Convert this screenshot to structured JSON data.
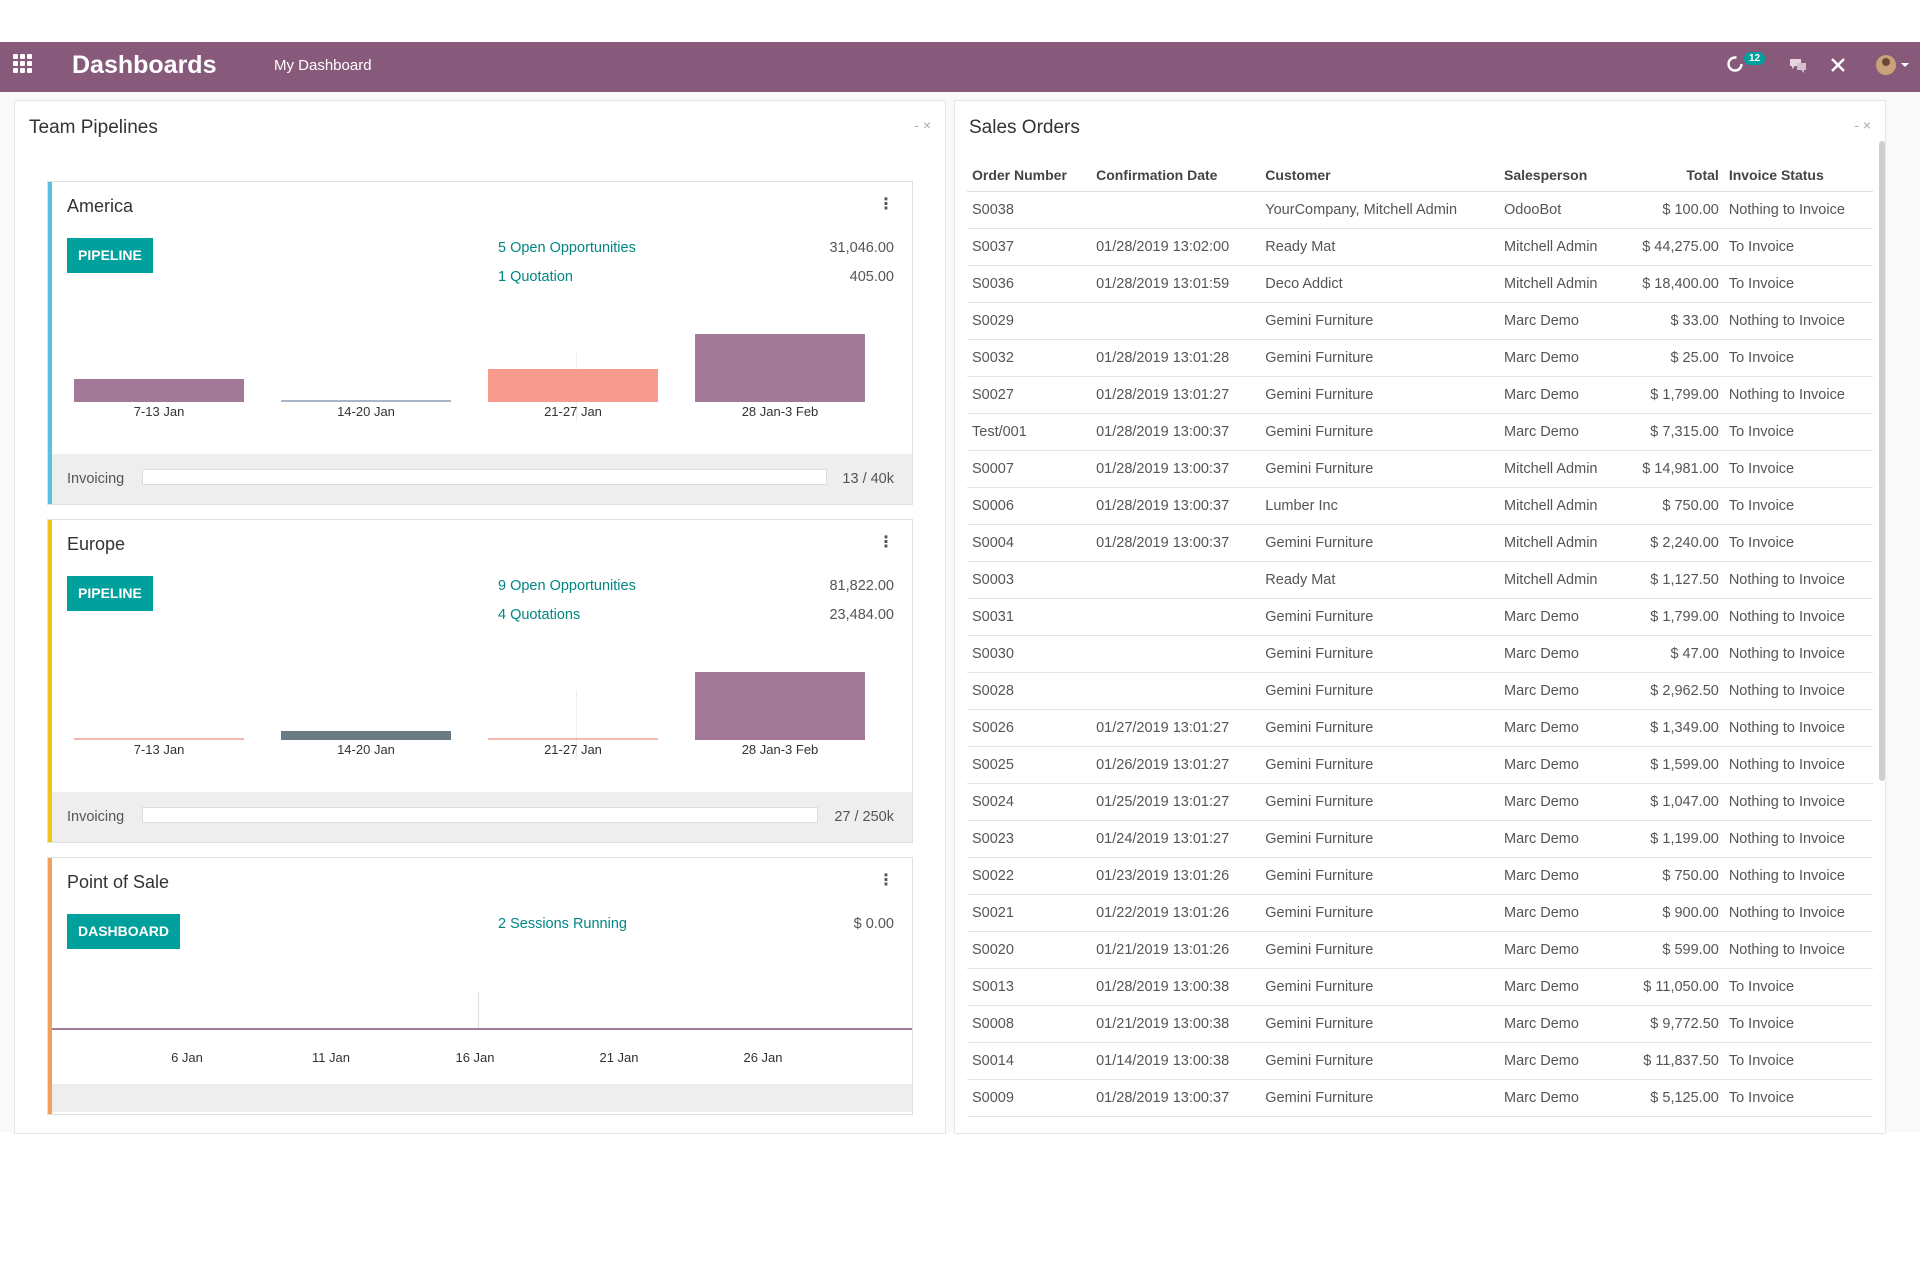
{
  "topbar": {
    "app_title": "Dashboards",
    "menu_item": "My Dashboard",
    "activity_count": "12",
    "bg_color": "#875a7b"
  },
  "left_panel": {
    "title": "Team Pipelines",
    "controls": "- ×",
    "teams": [
      {
        "name": "America",
        "accent": "#5bc0de",
        "button": "PIPELINE",
        "lines": [
          {
            "label": "5 Open Opportunities",
            "amount": "31,046.00"
          },
          {
            "label": "1 Quotation",
            "amount": "405.00"
          }
        ],
        "bars": [
          {
            "label": "7-13 Jan",
            "value": 20,
            "color": "#a27a97"
          },
          {
            "label": "14-20 Jan",
            "value": 2,
            "color": "#a7b6c4"
          },
          {
            "label": "21-27 Jan",
            "value": 28,
            "color": "#f89a8e"
          },
          {
            "label": "28 Jan-3 Feb",
            "value": 58,
            "color": "#a27a97"
          }
        ],
        "invoicing_label": "Invoicing",
        "invoicing_value": "13 / 40k",
        "invoicing_fraction": 0.0003
      },
      {
        "name": "Europe",
        "accent": "#f0c419",
        "button": "PIPELINE",
        "lines": [
          {
            "label": "9 Open Opportunities",
            "amount": "81,822.00"
          },
          {
            "label": "4 Quotations",
            "amount": "23,484.00"
          }
        ],
        "bars": [
          {
            "label": "7-13 Jan",
            "value": 2,
            "color": "#f4b8b1"
          },
          {
            "label": "14-20 Jan",
            "value": 8,
            "color": "#6c7a84"
          },
          {
            "label": "21-27 Jan",
            "value": 2,
            "color": "#f4b8b1"
          },
          {
            "label": "28 Jan-3 Feb",
            "value": 58,
            "color": "#a27a97"
          }
        ],
        "invoicing_label": "Invoicing",
        "invoicing_value": "27 / 250k",
        "invoicing_fraction": 0.0001
      },
      {
        "name": "Point of Sale",
        "accent": "#f0a05a",
        "button": "DASHBOARD",
        "lines": [
          {
            "label": "2 Sessions Running",
            "amount": "$ 0.00"
          }
        ],
        "ticks": [
          "6 Jan",
          "11 Jan",
          "16 Jan",
          "21 Jan",
          "26 Jan"
        ]
      }
    ]
  },
  "right_panel": {
    "title": "Sales Orders",
    "controls": "- ×",
    "columns": [
      "Order Number",
      "Confirmation Date",
      "Customer",
      "Salesperson",
      "Total",
      "Invoice Status"
    ],
    "rows": [
      [
        "S0038",
        "",
        "YourCompany, Mitchell Admin",
        "OdooBot",
        "$ 100.00",
        "Nothing to Invoice"
      ],
      [
        "S0037",
        "01/28/2019 13:02:00",
        "Ready Mat",
        "Mitchell Admin",
        "$ 44,275.00",
        "To Invoice"
      ],
      [
        "S0036",
        "01/28/2019 13:01:59",
        "Deco Addict",
        "Mitchell Admin",
        "$ 18,400.00",
        "To Invoice"
      ],
      [
        "S0029",
        "",
        "Gemini Furniture",
        "Marc Demo",
        "$ 33.00",
        "Nothing to Invoice"
      ],
      [
        "S0032",
        "01/28/2019 13:01:28",
        "Gemini Furniture",
        "Marc Demo",
        "$ 25.00",
        "To Invoice"
      ],
      [
        "S0027",
        "01/28/2019 13:01:27",
        "Gemini Furniture",
        "Marc Demo",
        "$ 1,799.00",
        "Nothing to Invoice"
      ],
      [
        "Test/001",
        "01/28/2019 13:00:37",
        "Gemini Furniture",
        "Marc Demo",
        "$ 7,315.00",
        "To Invoice"
      ],
      [
        "S0007",
        "01/28/2019 13:00:37",
        "Gemini Furniture",
        "Mitchell Admin",
        "$ 14,981.00",
        "To Invoice"
      ],
      [
        "S0006",
        "01/28/2019 13:00:37",
        "Lumber Inc",
        "Mitchell Admin",
        "$ 750.00",
        "To Invoice"
      ],
      [
        "S0004",
        "01/28/2019 13:00:37",
        "Gemini Furniture",
        "Mitchell Admin",
        "$ 2,240.00",
        "To Invoice"
      ],
      [
        "S0003",
        "",
        "Ready Mat",
        "Mitchell Admin",
        "$ 1,127.50",
        "Nothing to Invoice"
      ],
      [
        "S0031",
        "",
        "Gemini Furniture",
        "Marc Demo",
        "$ 1,799.00",
        "Nothing to Invoice"
      ],
      [
        "S0030",
        "",
        "Gemini Furniture",
        "Marc Demo",
        "$ 47.00",
        "Nothing to Invoice"
      ],
      [
        "S0028",
        "",
        "Gemini Furniture",
        "Marc Demo",
        "$ 2,962.50",
        "Nothing to Invoice"
      ],
      [
        "S0026",
        "01/27/2019 13:01:27",
        "Gemini Furniture",
        "Marc Demo",
        "$ 1,349.00",
        "Nothing to Invoice"
      ],
      [
        "S0025",
        "01/26/2019 13:01:27",
        "Gemini Furniture",
        "Marc Demo",
        "$ 1,599.00",
        "Nothing to Invoice"
      ],
      [
        "S0024",
        "01/25/2019 13:01:27",
        "Gemini Furniture",
        "Marc Demo",
        "$ 1,047.00",
        "Nothing to Invoice"
      ],
      [
        "S0023",
        "01/24/2019 13:01:27",
        "Gemini Furniture",
        "Marc Demo",
        "$ 1,199.00",
        "Nothing to Invoice"
      ],
      [
        "S0022",
        "01/23/2019 13:01:26",
        "Gemini Furniture",
        "Marc Demo",
        "$ 750.00",
        "Nothing to Invoice"
      ],
      [
        "S0021",
        "01/22/2019 13:01:26",
        "Gemini Furniture",
        "Marc Demo",
        "$ 900.00",
        "Nothing to Invoice"
      ],
      [
        "S0020",
        "01/21/2019 13:01:26",
        "Gemini Furniture",
        "Marc Demo",
        "$ 599.00",
        "Nothing to Invoice"
      ],
      [
        "S0013",
        "01/28/2019 13:00:38",
        "Gemini Furniture",
        "Marc Demo",
        "$ 11,050.00",
        "To Invoice"
      ],
      [
        "S0008",
        "01/21/2019 13:00:38",
        "Gemini Furniture",
        "Marc Demo",
        "$ 9,772.50",
        "To Invoice"
      ],
      [
        "S0014",
        "01/14/2019 13:00:38",
        "Gemini Furniture",
        "Marc Demo",
        "$ 11,837.50",
        "To Invoice"
      ],
      [
        "S0009",
        "01/28/2019 13:00:37",
        "Gemini Furniture",
        "Marc Demo",
        "$ 5,125.00",
        "To Invoice"
      ]
    ]
  }
}
